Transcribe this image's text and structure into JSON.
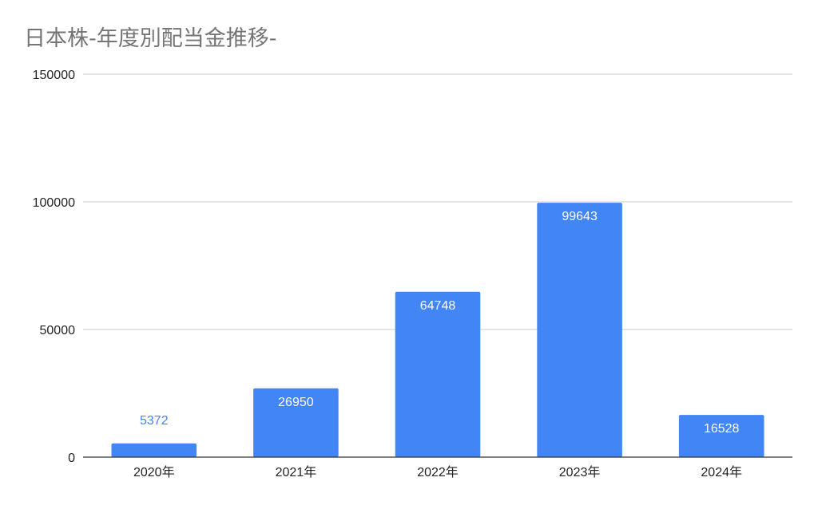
{
  "chart_data": {
    "type": "bar",
    "title": "日本株-年度別配当金推移-",
    "categories": [
      "2020年",
      "2021年",
      "2022年",
      "2023年",
      "2024年"
    ],
    "series": [
      {
        "values": [
          5372,
          26950,
          64748,
          99643,
          16528
        ]
      }
    ],
    "data_labels": [
      "5372",
      "26950",
      "64748",
      "99643",
      "16528"
    ],
    "ylim": [
      0,
      150000
    ],
    "yticks": [
      "0",
      "50000",
      "100000",
      "150000"
    ],
    "xlabel": "",
    "ylabel": "",
    "grid": true,
    "legend": "none",
    "colors": {
      "bar": "#4285f4",
      "label_inside": "#ffffff",
      "label_outside": "#4285f4",
      "grid": "#cccccc",
      "axis": "#333333"
    }
  }
}
